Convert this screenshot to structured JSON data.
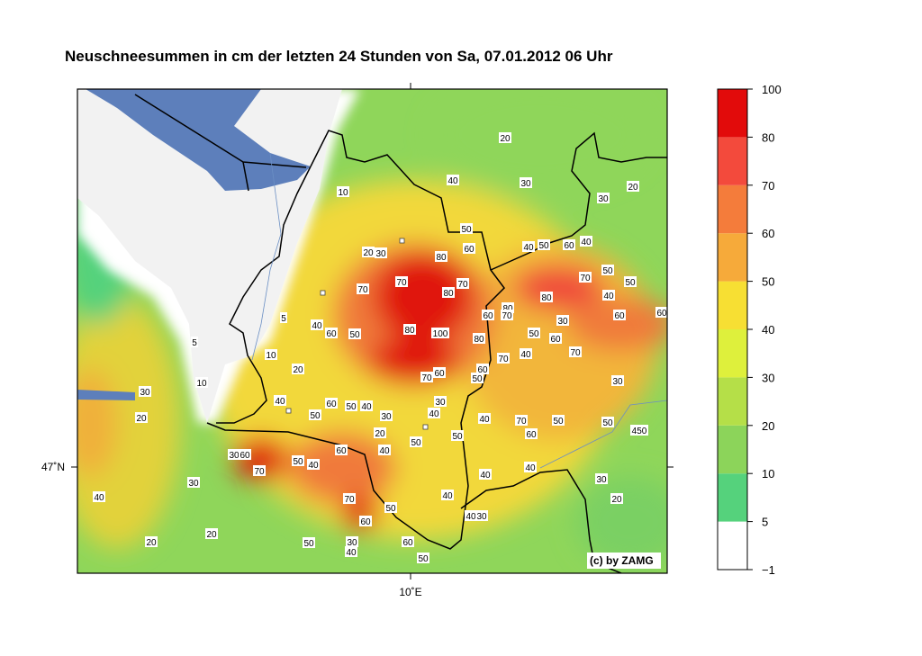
{
  "title": "Neuschneesummen in cm der letzten 24 Stunden von Sa, 07.01.2012 06 Uhr",
  "axes": {
    "lat_label": "47˚N",
    "lon_label": "10˚E"
  },
  "credit": "(c) by ZAMG",
  "colorbar": {
    "levels": [
      -1,
      5,
      10,
      20,
      30,
      40,
      50,
      60,
      70,
      80,
      100
    ],
    "ticks": [
      {
        "value": -1,
        "label": "−1"
      },
      5,
      10,
      20,
      30,
      40,
      50,
      60,
      70,
      80,
      100
    ],
    "colors": [
      "#ffffff",
      "#55d27c",
      "#8cd45a",
      "#b5df48",
      "#def03c",
      "#f7df33",
      "#f6aa3a",
      "#f47c3b",
      "#f34a3c",
      "#e20b0b"
    ]
  },
  "contour_labels": [
    20,
    40,
    30,
    30,
    20,
    10,
    50,
    60,
    20,
    30,
    80,
    40,
    50,
    60,
    40,
    70,
    70,
    80,
    70,
    70,
    50,
    80,
    50,
    40,
    60,
    80,
    70,
    30,
    60,
    60,
    5,
    40,
    60,
    50,
    80,
    100,
    80,
    50,
    60,
    5,
    10,
    20,
    70,
    40,
    70,
    70,
    60,
    50,
    60,
    30,
    30,
    10,
    40,
    60,
    50,
    40,
    30,
    40,
    50,
    30,
    20,
    40,
    70,
    50,
    50,
    450,
    20,
    50,
    50,
    60,
    40,
    30,
    60,
    60,
    50,
    40,
    70,
    40,
    40,
    30,
    30,
    40,
    70,
    20,
    40,
    50,
    40,
    30,
    60,
    20,
    20,
    50,
    60,
    30,
    40,
    50
  ]
}
